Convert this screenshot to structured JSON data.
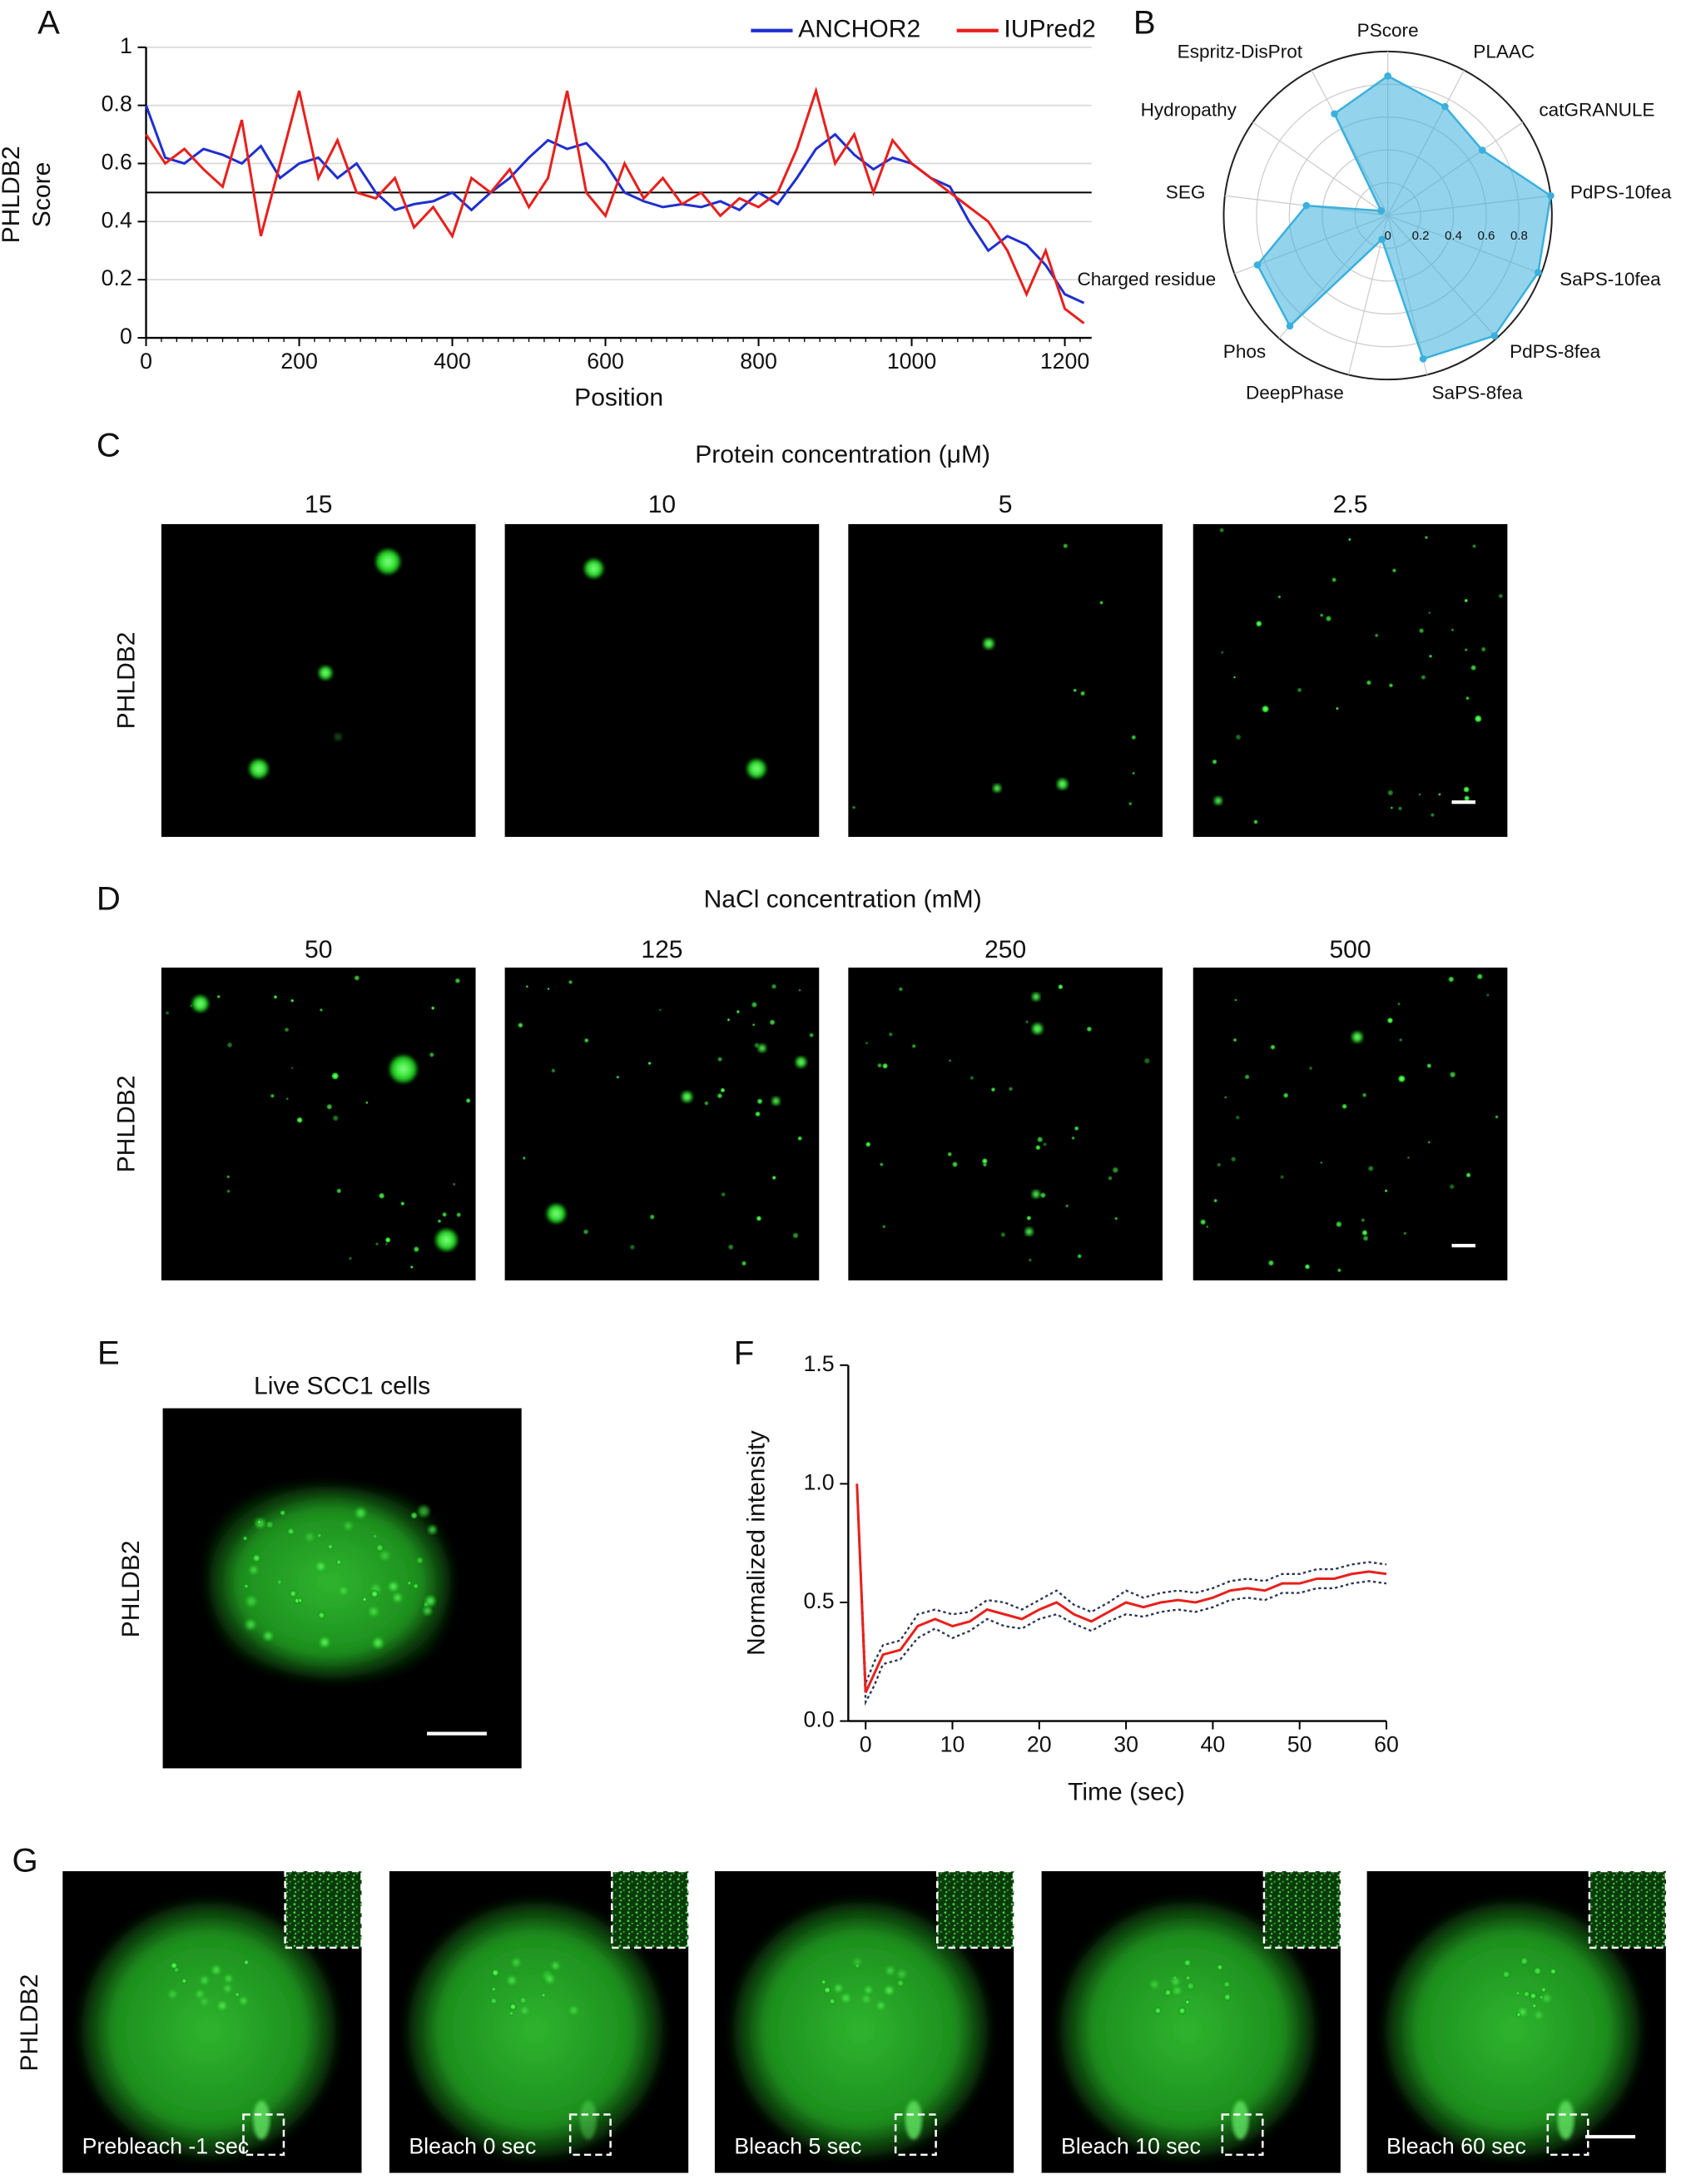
{
  "panel_letters": [
    "A",
    "B",
    "C",
    "D",
    "E",
    "F",
    "G"
  ],
  "chart_data": [
    {
      "type": "line",
      "ylabel": [
        "PHLDB2",
        "Score"
      ],
      "xlabel": "Position",
      "x": [
        0,
        25,
        50,
        75,
        100,
        125,
        150,
        175,
        200,
        225,
        250,
        275,
        300,
        325,
        350,
        375,
        400,
        425,
        450,
        475,
        500,
        525,
        550,
        575,
        600,
        625,
        650,
        675,
        700,
        725,
        750,
        775,
        800,
        825,
        850,
        875,
        900,
        925,
        950,
        975,
        1000,
        1025,
        1050,
        1075,
        1100,
        1125,
        1150,
        1175,
        1200,
        1225
      ],
      "series": [
        {
          "name": "ANCHOR2",
          "color": "#1f2fd0",
          "values": [
            0.8,
            0.62,
            0.6,
            0.65,
            0.63,
            0.6,
            0.66,
            0.55,
            0.6,
            0.62,
            0.55,
            0.6,
            0.5,
            0.44,
            0.46,
            0.47,
            0.5,
            0.44,
            0.5,
            0.55,
            0.62,
            0.68,
            0.65,
            0.67,
            0.6,
            0.5,
            0.47,
            0.45,
            0.46,
            0.45,
            0.47,
            0.44,
            0.5,
            0.46,
            0.55,
            0.65,
            0.7,
            0.63,
            0.58,
            0.62,
            0.6,
            0.55,
            0.52,
            0.4,
            0.3,
            0.35,
            0.32,
            0.25,
            0.15,
            0.12
          ]
        },
        {
          "name": "IUPred2",
          "color": "#e8201c",
          "values": [
            0.7,
            0.6,
            0.65,
            0.58,
            0.52,
            0.75,
            0.35,
            0.6,
            0.85,
            0.55,
            0.68,
            0.5,
            0.48,
            0.55,
            0.38,
            0.45,
            0.35,
            0.55,
            0.5,
            0.58,
            0.45,
            0.55,
            0.85,
            0.5,
            0.42,
            0.6,
            0.48,
            0.55,
            0.46,
            0.5,
            0.42,
            0.48,
            0.45,
            0.5,
            0.65,
            0.85,
            0.6,
            0.7,
            0.5,
            0.68,
            0.6,
            0.55,
            0.5,
            0.45,
            0.4,
            0.3,
            0.15,
            0.3,
            0.1,
            0.05
          ]
        }
      ],
      "hlines": [
        0.5
      ],
      "xlim": [
        0,
        1235
      ],
      "ylim": [
        0,
        1
      ],
      "xticks": [
        0,
        200,
        400,
        600,
        800,
        1000,
        1200
      ],
      "yticks": [
        0,
        0.2,
        0.4,
        0.6,
        0.8,
        1
      ],
      "grid": true,
      "legend": "upper right"
    },
    {
      "type": "radar",
      "categories": [
        "PScore",
        "PLAAC",
        "catGRANULE",
        "PdPS-10fea",
        "SaPS-10fea",
        "PdPS-8fea",
        "SaPS-8fea",
        "DeepPhase",
        "Phos",
        "Charged residue",
        "SEG",
        "Hydropathy",
        "Espritz-DisProt"
      ],
      "values": [
        0.85,
        0.75,
        0.7,
        1.0,
        0.98,
        0.98,
        0.9,
        0.15,
        0.9,
        0.85,
        0.5,
        0.05,
        0.7
      ],
      "color": "#3bb0dc",
      "rlim": [
        0,
        1
      ],
      "rticks": [
        0,
        0.2,
        0.4,
        0.6,
        0.8
      ]
    },
    {
      "type": "line",
      "ylabel": [
        "Normalized intensity"
      ],
      "xlabel": "Time (sec)",
      "x": [
        -1,
        0,
        1,
        2,
        4,
        6,
        8,
        10,
        12,
        14,
        16,
        18,
        20,
        22,
        24,
        26,
        28,
        30,
        32,
        34,
        36,
        38,
        40,
        42,
        44,
        46,
        48,
        50,
        52,
        54,
        56,
        58,
        60
      ],
      "series": [
        {
          "color": "#2a3550",
          "dash": true,
          "values": [
            1.0,
            0.16,
            0.25,
            0.32,
            0.34,
            0.45,
            0.47,
            0.45,
            0.46,
            0.51,
            0.5,
            0.47,
            0.51,
            0.55,
            0.49,
            0.46,
            0.5,
            0.55,
            0.52,
            0.54,
            0.55,
            0.54,
            0.56,
            0.59,
            0.6,
            0.59,
            0.62,
            0.62,
            0.64,
            0.64,
            0.66,
            0.67,
            0.66
          ]
        },
        {
          "color": "#2a3550",
          "dash": true,
          "values": [
            1.0,
            0.08,
            0.15,
            0.24,
            0.26,
            0.35,
            0.39,
            0.35,
            0.38,
            0.43,
            0.4,
            0.39,
            0.43,
            0.45,
            0.41,
            0.38,
            0.42,
            0.45,
            0.44,
            0.46,
            0.47,
            0.46,
            0.48,
            0.51,
            0.52,
            0.51,
            0.54,
            0.54,
            0.56,
            0.56,
            0.58,
            0.59,
            0.58
          ]
        },
        {
          "color": "#e8201c",
          "values": [
            1.0,
            0.12,
            0.2,
            0.28,
            0.3,
            0.4,
            0.43,
            0.4,
            0.42,
            0.47,
            0.45,
            0.43,
            0.47,
            0.5,
            0.45,
            0.42,
            0.46,
            0.5,
            0.48,
            0.5,
            0.51,
            0.5,
            0.52,
            0.55,
            0.56,
            0.55,
            0.58,
            0.58,
            0.6,
            0.6,
            0.62,
            0.63,
            0.62
          ]
        }
      ],
      "xlim": [
        -2,
        60
      ],
      "ylim": [
        0,
        1.5
      ],
      "xticks": [
        0,
        10,
        20,
        30,
        40,
        50,
        60
      ],
      "yticks": [
        {
          "value": 0,
          "label": "0.0"
        },
        {
          "value": 0.5,
          "label": "0.5"
        },
        {
          "value": 1,
          "label": "1.0"
        },
        {
          "value": 1.5,
          "label": "1.5"
        }
      ],
      "grid": false
    }
  ],
  "image_panels": {
    "C": {
      "title": "Protein concentration (μM)",
      "columns": [
        "15",
        "10",
        "5",
        "2.5"
      ],
      "row_label": "PHLDB2"
    },
    "D": {
      "title": "NaCl concentration (mM)",
      "columns": [
        "50",
        "125",
        "250",
        "500"
      ],
      "row_label": "PHLDB2"
    },
    "E": {
      "title": "Live SCC1 cells",
      "row_label": "PHLDB2"
    },
    "G": {
      "row_label": "PHLDB2",
      "captions": [
        "Prebleach -1 sec",
        "Bleach 0 sec",
        "Bleach 5 sec",
        "Bleach 10 sec",
        "Bleach 60 sec"
      ]
    }
  }
}
